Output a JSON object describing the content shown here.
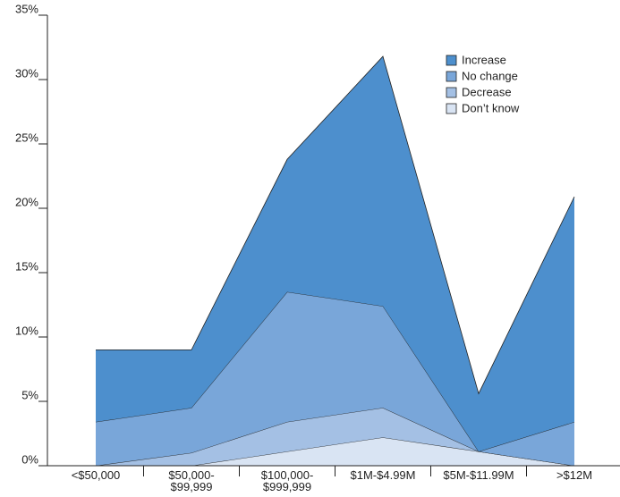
{
  "chart_data": {
    "type": "stacked_area",
    "categories": [
      "<$50,000",
      "$50,000-\n$99,999",
      "$100,000-\n$999,999",
      "$1M-$4.99M",
      "$5M-$11.99M",
      ">$12M"
    ],
    "series": [
      {
        "name": "Don’t know",
        "color": "#d9e4f3",
        "values": [
          0,
          0,
          1.1,
          2.2,
          1.1,
          0
        ]
      },
      {
        "name": "Decrease",
        "color": "#a4c0e4",
        "values": [
          0,
          1.0,
          2.3,
          2.3,
          0,
          0
        ]
      },
      {
        "name": "No change",
        "color": "#79a6d9",
        "values": [
          3.4,
          3.5,
          10.1,
          7.9,
          0,
          3.4
        ]
      },
      {
        "name": "Increase",
        "color": "#4d8fcd",
        "values": [
          5.6,
          4.5,
          10.3,
          19.4,
          4.5,
          17.5
        ]
      }
    ],
    "ylim": [
      0,
      35
    ],
    "yticks": [
      {
        "value": 0,
        "label": "0%"
      },
      {
        "value": 5,
        "label": "5%"
      },
      {
        "value": 10,
        "label": "10%"
      },
      {
        "value": 15,
        "label": "15%"
      },
      {
        "value": 20,
        "label": "20%"
      },
      {
        "value": 25,
        "label": "25%"
      },
      {
        "value": 30,
        "label": "30%"
      },
      {
        "value": 35,
        "label": "35%"
      }
    ],
    "legend": "upper right"
  }
}
